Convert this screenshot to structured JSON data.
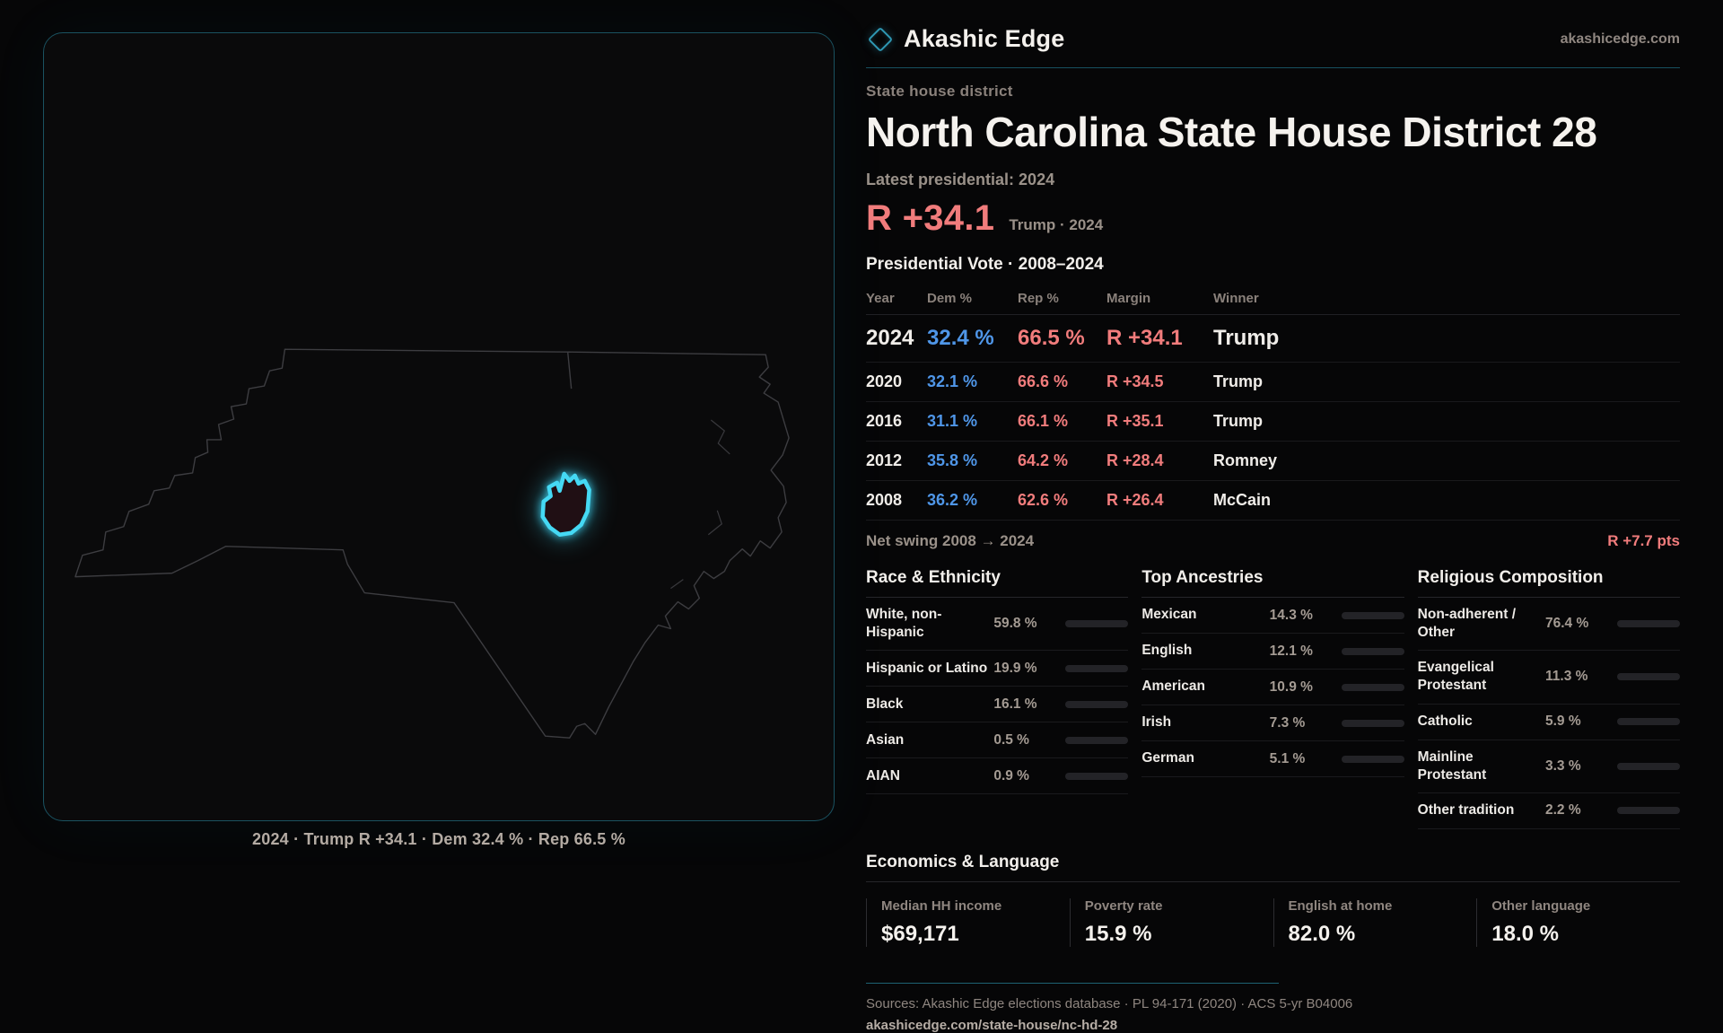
{
  "brand": {
    "name": "Akashic Edge",
    "domain": "akashicedge.com"
  },
  "header": {
    "kicker": "State house district",
    "title": "North Carolina State House District 28",
    "latest_label": "Latest presidential: 2024",
    "headline": {
      "margin": "R +34.1",
      "sub": "Trump · 2024"
    }
  },
  "map": {
    "caption": "2024 · Trump R +34.1 · Dem 32.4 % · Rep 66.5 %"
  },
  "election_table": {
    "title": "Presidential Vote · 2008–2024",
    "columns": [
      "Year",
      "Dem %",
      "Rep %",
      "Margin",
      "Winner"
    ],
    "rows": [
      {
        "year": "2024",
        "dem": "32.4 %",
        "rep": "66.5 %",
        "margin": "R +34.1",
        "winner": "Trump"
      },
      {
        "year": "2020",
        "dem": "32.1 %",
        "rep": "66.6 %",
        "margin": "R +34.5",
        "winner": "Trump"
      },
      {
        "year": "2016",
        "dem": "31.1 %",
        "rep": "66.1 %",
        "margin": "R +35.1",
        "winner": "Trump"
      },
      {
        "year": "2012",
        "dem": "35.8 %",
        "rep": "64.2 %",
        "margin": "R +28.4",
        "winner": "Romney"
      },
      {
        "year": "2008",
        "dem": "36.2 %",
        "rep": "62.6 %",
        "margin": "R +26.4",
        "winner": "McCain"
      }
    ],
    "net_swing": {
      "label": "Net swing 2008 → 2024",
      "value": "R +7.7 pts"
    }
  },
  "demographics": {
    "race": {
      "title": "Race & Ethnicity",
      "rows": [
        {
          "label": "White, non-Hispanic",
          "value": "59.8 %",
          "pct": 59.8,
          "color": "#8da4bf"
        },
        {
          "label": "Hispanic or Latino",
          "value": "19.9 %",
          "pct": 19.9,
          "color": "#e2a43c"
        },
        {
          "label": "Black",
          "value": "16.1 %",
          "pct": 16.1,
          "color": "#9b8cf0"
        },
        {
          "label": "Asian",
          "value": "0.5 %",
          "pct": 0.5,
          "color": "#8da4bf"
        },
        {
          "label": "AIAN",
          "value": "0.9 %",
          "pct": 0.9,
          "color": "#c0703c"
        }
      ]
    },
    "ancestries": {
      "title": "Top Ancestries",
      "rows": [
        {
          "label": "Mexican",
          "value": "14.3 %",
          "pct": 14.3,
          "color": "#e2a43c"
        },
        {
          "label": "English",
          "value": "12.1 %",
          "pct": 12.1,
          "color": "#8da4bf"
        },
        {
          "label": "American",
          "value": "10.9 %",
          "pct": 10.9,
          "color": "#8da4bf"
        },
        {
          "label": "Irish",
          "value": "7.3 %",
          "pct": 7.3,
          "color": "#8da4bf"
        },
        {
          "label": "German",
          "value": "5.1 %",
          "pct": 5.1,
          "color": "#8da4bf"
        }
      ]
    },
    "religion": {
      "title": "Religious Composition",
      "rows": [
        {
          "label": "Non-adherent / Other",
          "value": "76.4 %",
          "pct": 76.4,
          "color": "#8da4bf"
        },
        {
          "label": "Evangelical Protestant",
          "value": "11.3 %",
          "pct": 11.3,
          "color": "#ef7b7b"
        },
        {
          "label": "Catholic",
          "value": "5.9 %",
          "pct": 5.9,
          "color": "#e2a43c"
        },
        {
          "label": "Mainline Protestant",
          "value": "3.3 %",
          "pct": 3.3,
          "color": "#5b8fd6"
        },
        {
          "label": "Other tradition",
          "value": "2.2 %",
          "pct": 2.2,
          "color": "#9a9aa0"
        }
      ]
    }
  },
  "economics": {
    "title": "Economics & Language",
    "stats": [
      {
        "label": "Median HH income",
        "value": "$69,171"
      },
      {
        "label": "Poverty rate",
        "value": "15.9 %"
      },
      {
        "label": "English at home",
        "value": "82.0 %"
      },
      {
        "label": "Other language",
        "value": "18.0 %"
      }
    ]
  },
  "footer": {
    "sources": "Sources: Akashic Edge elections database · PL 94-171 (2020) · ACS 5-yr B04006",
    "permalink": "akashicedge.com/state-house/nc-hd-28"
  }
}
